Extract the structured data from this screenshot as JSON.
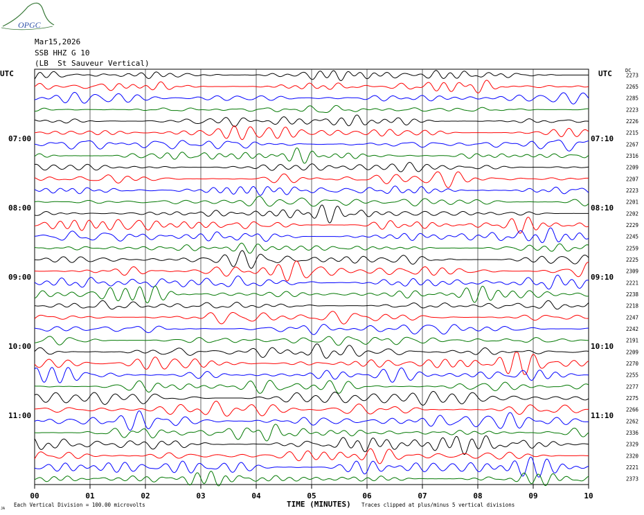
{
  "header": {
    "date": "Mar15,2026",
    "station": "SSB HHZ G 10",
    "location": "(LB  St Sauveur Vertical)",
    "logo_text": "OPGC"
  },
  "utc_label_left": "UTC",
  "utc_label_right": "UTC",
  "dc_label": "DC",
  "footer": {
    "scale_note": "Each Vertical Division =  100.00 microvolts",
    "xaxis_title": "TIME (MINUTES)",
    "clip_note": "Traces clipped at plus/minus 5 vertical divisions",
    "corner_mark": "JA"
  },
  "colors": {
    "trace_cycle": [
      "#000000",
      "#ff0000",
      "#0000ff",
      "#007700"
    ],
    "grid": "#000000",
    "logo": "#3a7a3a",
    "logo_text": "#3355aa"
  },
  "chart_data": {
    "type": "line",
    "title": "",
    "xlabel": "TIME (MINUTES)",
    "xlim": [
      0,
      10
    ],
    "x_ticks": [
      "00",
      "01",
      "02",
      "03",
      "04",
      "05",
      "06",
      "07",
      "08",
      "09",
      "10"
    ],
    "left_time_labels": [
      {
        "row": 6,
        "label": "07:00"
      },
      {
        "row": 12,
        "label": "08:00"
      },
      {
        "row": 18,
        "label": "09:00"
      },
      {
        "row": 24,
        "label": "10:00"
      },
      {
        "row": 30,
        "label": "11:00"
      }
    ],
    "right_time_labels": [
      {
        "row": 6,
        "label": "07:10"
      },
      {
        "row": 12,
        "label": "08:10"
      },
      {
        "row": 18,
        "label": "09:10"
      },
      {
        "row": 24,
        "label": "10:10"
      },
      {
        "row": 30,
        "label": "11:10"
      }
    ],
    "dc_offsets": [
      2273,
      2265,
      2285,
      2223,
      2226,
      2215,
      2267,
      2316,
      2209,
      2207,
      2223,
      2201,
      2202,
      2229,
      2245,
      2259,
      2225,
      2309,
      2221,
      2238,
      2218,
      2247,
      2242,
      2191,
      2209,
      2270,
      2255,
      2277,
      2275,
      2266,
      2262,
      2336,
      2329,
      2320,
      2221,
      2373
    ],
    "rows": 36,
    "minutes_per_row": 10,
    "vertical_division_microvolts": 100.0,
    "clip_divisions": 5
  }
}
